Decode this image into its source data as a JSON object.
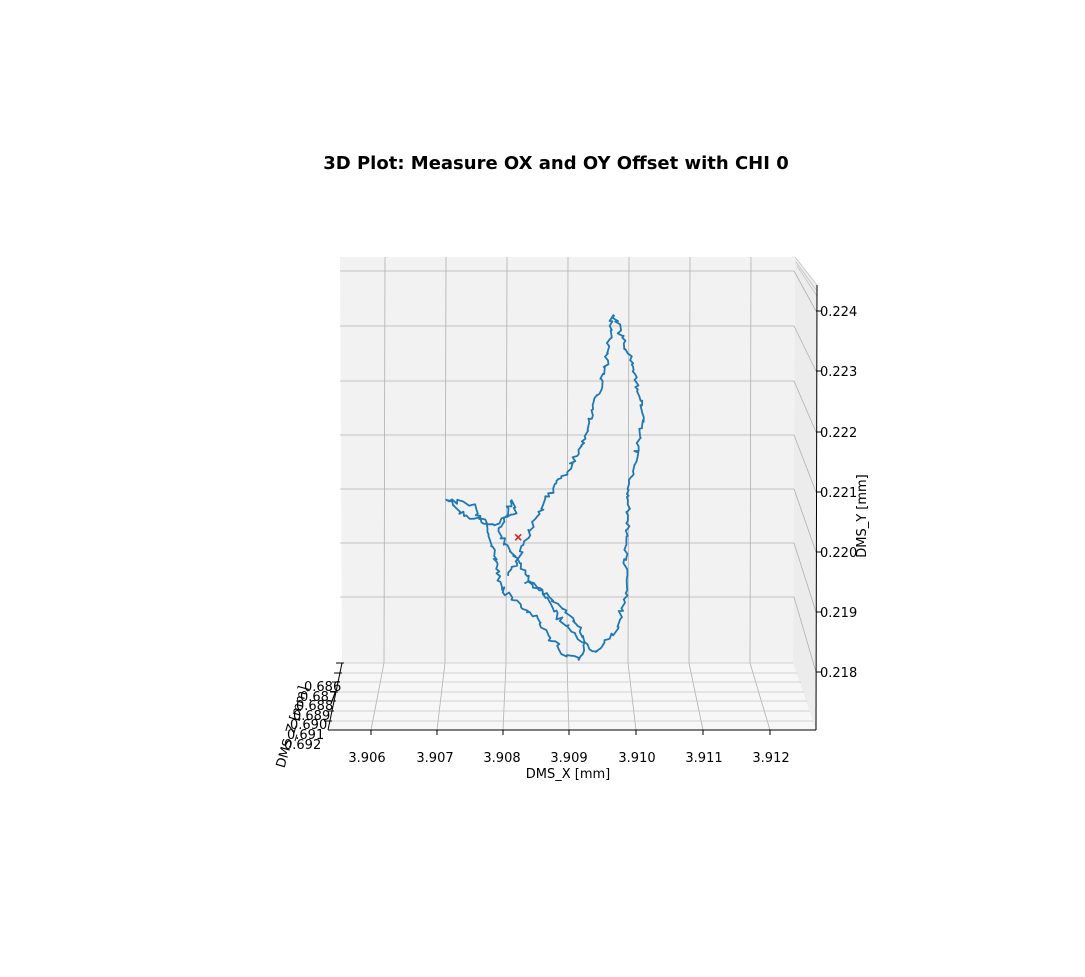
{
  "chart_data": {
    "type": "line",
    "projection": "3d",
    "title": "3D Plot: Measure OX and OY Offset with CHI 0",
    "xlabel": "DMS_X [mm]",
    "ylabel": "DMS_Y [mm]",
    "zlabel": "DMS_Z [mm]",
    "x_ticks": [
      "3.906",
      "3.907",
      "3.908",
      "3.909",
      "3.910",
      "3.911",
      "3.912"
    ],
    "y_ticks": [
      "0.218",
      "0.219",
      "0.220",
      "0.221",
      "0.222",
      "0.223",
      "0.224"
    ],
    "z_ticks": [
      "0.686",
      "0.687",
      "0.688",
      "0.689",
      "0.690",
      "0.691",
      "0.692"
    ],
    "xlim": [
      3.9055,
      3.9127
    ],
    "ylim": [
      0.2174,
      0.2246
    ],
    "grid": true,
    "series": [
      {
        "color": "#1f77b4",
        "x": [
          3.90838,
          3.90855,
          3.90885,
          3.9091,
          3.90925,
          3.90915,
          3.90895,
          3.9087,
          3.90845,
          3.90825,
          3.90798,
          3.90792,
          3.90775,
          3.90755,
          3.9072,
          3.9075,
          3.9079,
          3.9082,
          3.90815,
          3.90795,
          3.9082,
          3.9084,
          3.9085,
          3.9089,
          3.9094,
          3.9097,
          3.90985,
          3.90985,
          3.9099,
          3.9101,
          3.91,
          3.90985,
          3.9097,
          3.90965,
          3.90955,
          3.9094,
          3.90925,
          3.90908,
          3.9089,
          3.90868,
          3.90845,
          3.9083,
          3.90818,
          3.9081
        ],
        "y": [
          0.21949,
          0.21935,
          0.2191,
          0.21881,
          0.21847,
          0.2182,
          0.21827,
          0.21858,
          0.21898,
          0.21915,
          0.21938,
          0.2198,
          0.22045,
          0.22077,
          0.22084,
          0.22055,
          0.22045,
          0.22066,
          0.22085,
          0.2203,
          0.21988,
          0.21955,
          0.21944,
          0.21881,
          0.2183,
          0.21862,
          0.21927,
          0.21997,
          0.221,
          0.22218,
          0.22292,
          0.22342,
          0.22381,
          0.22392,
          0.22305,
          0.22245,
          0.22194,
          0.22149,
          0.22122,
          0.22087,
          0.22036,
          0.21999,
          0.21972,
          0.21958
        ]
      }
    ],
    "marker": {
      "x": 3.90825,
      "y": 0.22022,
      "symbol": "x",
      "color": "#d62728"
    }
  }
}
